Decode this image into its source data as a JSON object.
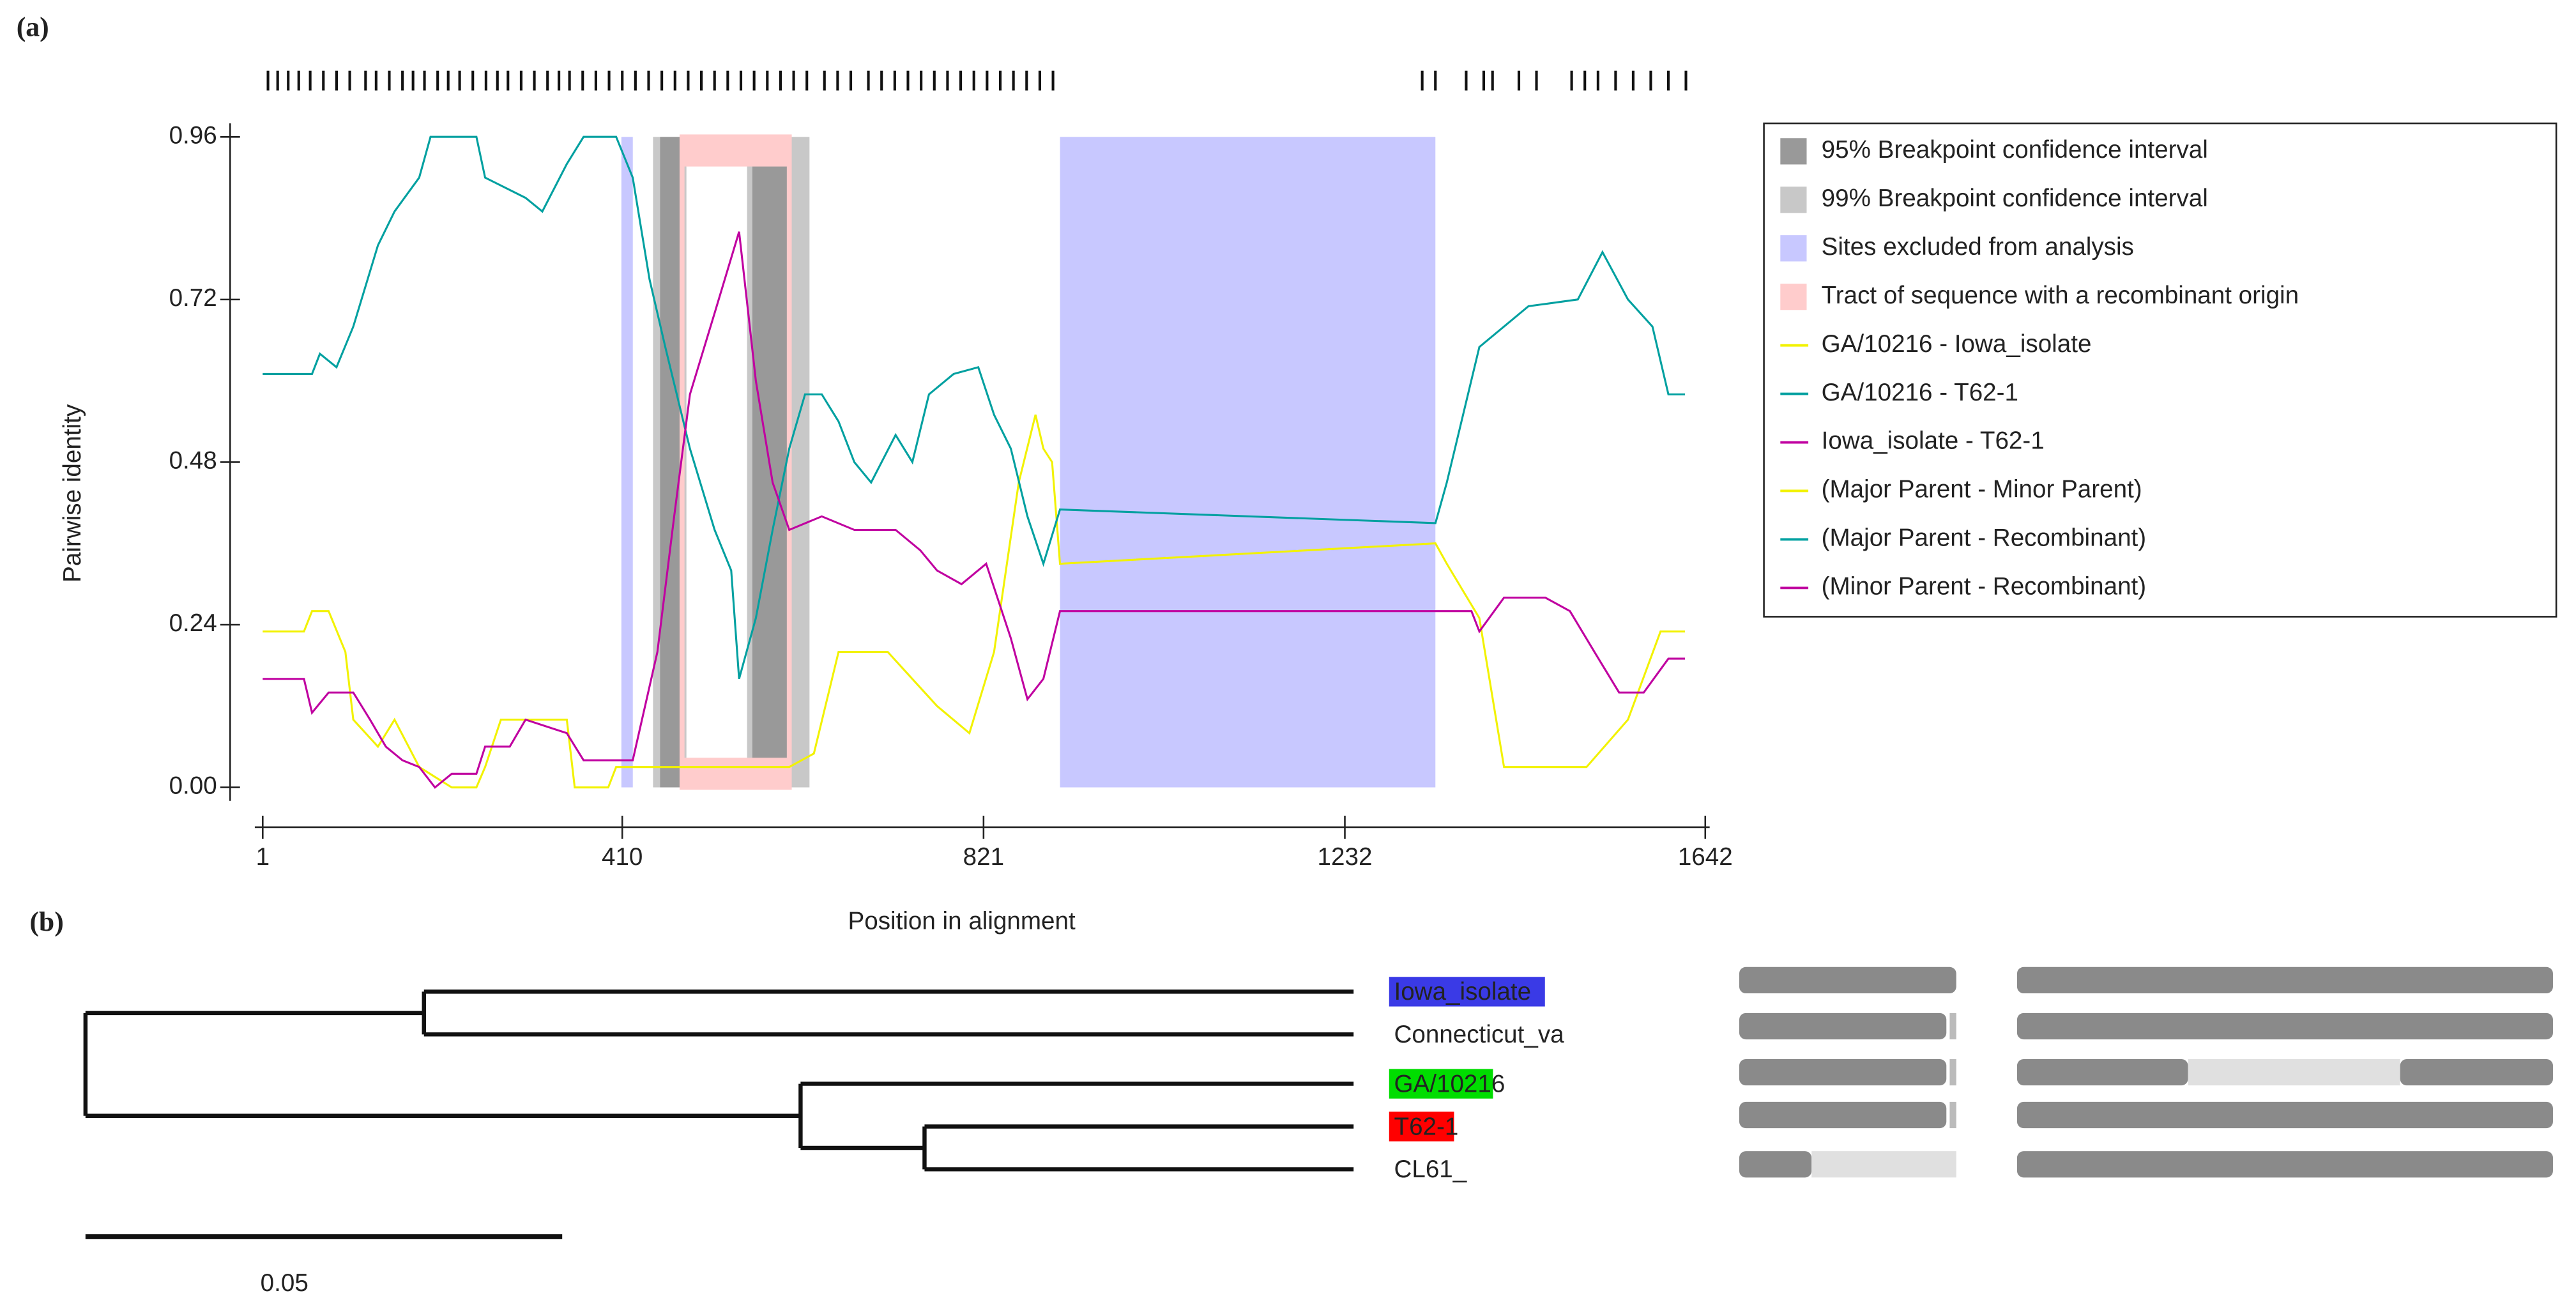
{
  "panel_labels": [
    "(a)",
    "(b)"
  ],
  "chart_data": {
    "type": "line",
    "x_label": "Position in alignment",
    "y_label": "Pairwise identity",
    "xlim": [
      -8,
      1647
    ],
    "ylim": [
      -0.02,
      0.98
    ],
    "xticks": [
      1,
      410,
      821,
      1232,
      1642
    ],
    "yticks": [
      {
        "value": 0,
        "label": "0.00"
      },
      0.24,
      0.48,
      0.72,
      0.96
    ],
    "sites": [
      7,
      18,
      30,
      42,
      55,
      70,
      85,
      100,
      118,
      130,
      145,
      160,
      172,
      185,
      200,
      212,
      225,
      240,
      255,
      268,
      280,
      295,
      310,
      325,
      338,
      350,
      365,
      380,
      395,
      410,
      425,
      440,
      455,
      470,
      485,
      500,
      515,
      530,
      545,
      560,
      575,
      590,
      605,
      620,
      640,
      655,
      670,
      690,
      705,
      720,
      735,
      750,
      765,
      780,
      795,
      810,
      825,
      840,
      855,
      870,
      885,
      900,
      1320,
      1335,
      1370,
      1390,
      1400,
      1430,
      1450,
      1490,
      1505,
      1520,
      1540,
      1560,
      1580,
      1600,
      1620
    ],
    "regions": [
      {
        "name": "95% Breakpoint confidence interval",
        "color": "#999999",
        "ranges": [
          [
            453,
            478
          ],
          [
            558,
            600
          ]
        ]
      },
      {
        "name": "99% Breakpoint confidence interval",
        "color": "#c8c8c8",
        "ranges": [
          [
            445,
            483
          ],
          [
            552,
            623
          ]
        ]
      },
      {
        "name": "Sites excluded from analysis",
        "color": "#c8c8ff",
        "ranges": [
          [
            409,
            422
          ],
          [
            908,
            1335
          ]
        ]
      },
      {
        "name": "Tract of sequence with a recombinant origin",
        "color": "#ffcccc",
        "ranges": [
          [
            478,
            600
          ]
        ]
      }
    ],
    "series": [
      {
        "name": "GA/10216 - Iowa_isolate",
        "alias": "(Major Parent - Minor Parent)",
        "color": "#f2f200",
        "x": [
          1,
          48,
          57,
          76,
          95,
          104,
          132,
          151,
          179,
          216,
          244,
          254,
          272,
          347,
          356,
          394,
          403,
          600,
          628,
          656,
          712,
          768,
          805,
          833,
          861,
          880,
          889,
          899,
          908,
          1335,
          1348,
          1385,
          1413,
          1507,
          1554,
          1591,
          1619
        ],
        "values": [
          0.23,
          0.23,
          0.26,
          0.26,
          0.2,
          0.1,
          0.06,
          0.1,
          0.03,
          0.0,
          0.0,
          0.03,
          0.1,
          0.1,
          0.0,
          0.0,
          0.03,
          0.03,
          0.05,
          0.2,
          0.2,
          0.12,
          0.08,
          0.2,
          0.45,
          0.55,
          0.5,
          0.48,
          0.33,
          0.36,
          0.33,
          0.25,
          0.03,
          0.03,
          0.1,
          0.23,
          0.23
        ]
      },
      {
        "name": "GA/10216 - T62-1",
        "alias": "(Major Parent - Recombinant)",
        "color": "#00a0a0",
        "x": [
          1,
          57,
          66,
          85,
          104,
          132,
          151,
          179,
          192,
          244,
          254,
          300,
          319,
          347,
          366,
          403,
          422,
          441,
          459,
          487,
          515,
          534,
          543,
          562,
          581,
          600,
          618,
          637,
          656,
          674,
          693,
          721,
          740,
          759,
          787,
          815,
          833,
          852,
          871,
          889,
          908,
          1335,
          1348,
          1385,
          1441,
          1497,
          1525,
          1554,
          1582,
          1600,
          1619
        ],
        "values": [
          0.61,
          0.61,
          0.64,
          0.62,
          0.68,
          0.8,
          0.85,
          0.9,
          0.96,
          0.96,
          0.9,
          0.87,
          0.85,
          0.92,
          0.96,
          0.96,
          0.9,
          0.75,
          0.65,
          0.5,
          0.38,
          0.32,
          0.16,
          0.25,
          0.38,
          0.5,
          0.58,
          0.58,
          0.54,
          0.48,
          0.45,
          0.52,
          0.48,
          0.58,
          0.61,
          0.62,
          0.55,
          0.5,
          0.4,
          0.33,
          0.41,
          0.39,
          0.45,
          0.65,
          0.71,
          0.72,
          0.79,
          0.72,
          0.68,
          0.58,
          0.58
        ]
      },
      {
        "name": "Iowa_isolate - T62-1",
        "alias": "(Minor Parent - Recombinant)",
        "color": "#c000a0",
        "x": [
          1,
          48,
          57,
          76,
          104,
          123,
          141,
          160,
          179,
          197,
          216,
          244,
          254,
          282,
          300,
          347,
          366,
          422,
          450,
          469,
          487,
          515,
          543,
          562,
          581,
          600,
          637,
          674,
          721,
          749,
          768,
          796,
          824,
          852,
          871,
          889,
          908,
          1376,
          1385,
          1413,
          1460,
          1488,
          1516,
          1544,
          1572,
          1600,
          1619
        ],
        "values": [
          0.16,
          0.16,
          0.11,
          0.14,
          0.14,
          0.1,
          0.06,
          0.04,
          0.03,
          0.0,
          0.02,
          0.02,
          0.06,
          0.06,
          0.1,
          0.08,
          0.04,
          0.04,
          0.2,
          0.4,
          0.58,
          0.7,
          0.82,
          0.6,
          0.45,
          0.38,
          0.4,
          0.38,
          0.38,
          0.35,
          0.32,
          0.3,
          0.33,
          0.22,
          0.13,
          0.16,
          0.26,
          0.26,
          0.23,
          0.28,
          0.28,
          0.26,
          0.2,
          0.14,
          0.14,
          0.19,
          0.19
        ]
      }
    ]
  },
  "tree": {
    "scale_bar": 0.05,
    "nodes": [
      {
        "branch_length": 0,
        "children": [
          1,
          4
        ]
      },
      {
        "branch_length": 0.0355,
        "children": [
          2,
          3
        ]
      },
      {
        "name": "Iowa_isolate",
        "branch_length": 0.0975,
        "highlight": "#3a3ae6"
      },
      {
        "name": "Connecticut_va",
        "branch_length": 0.0975
      },
      {
        "branch_length": 0.075,
        "children": [
          5,
          6
        ]
      },
      {
        "name": "GA/10216",
        "branch_length": 0.058,
        "highlight": "#00dd00"
      },
      {
        "branch_length": 0.013,
        "children": [
          7,
          8
        ]
      },
      {
        "name": "T62-1",
        "branch_length": 0.045,
        "highlight": "#ff0000"
      },
      {
        "name": "CL61_",
        "branch_length": 0.045
      }
    ]
  }
}
